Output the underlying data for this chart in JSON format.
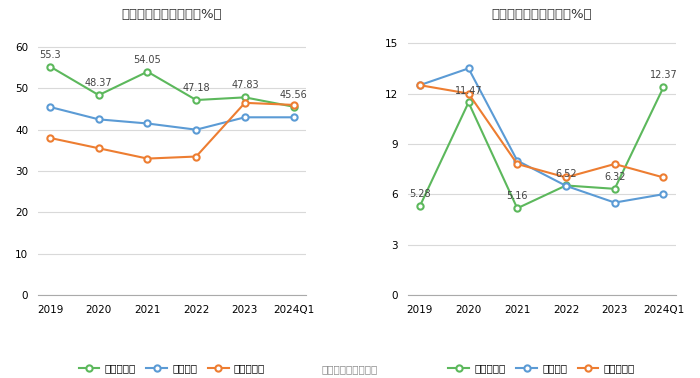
{
  "categories": [
    "2019",
    "2020",
    "2021",
    "2022",
    "2023",
    "2024Q1"
  ],
  "chart1": {
    "title": "历年毛利率变化情况（%）",
    "green": [
      55.3,
      48.37,
      54.05,
      47.18,
      47.83,
      45.56
    ],
    "blue": [
      45.5,
      42.5,
      41.5,
      40.0,
      43.0,
      43.0
    ],
    "orange": [
      38.0,
      35.5,
      33.0,
      33.5,
      46.5,
      46.0
    ],
    "green_label": "公司毛利率",
    "blue_label": "行业均值",
    "orange_label": "行业中位数",
    "ylim": [
      0,
      65
    ],
    "yticks": [
      0,
      10,
      20,
      30,
      40,
      50,
      60
    ]
  },
  "chart2": {
    "title": "历年净利率变化情况（%）",
    "green": [
      5.28,
      11.47,
      5.16,
      6.52,
      6.32,
      12.37
    ],
    "blue": [
      12.5,
      13.5,
      8.0,
      6.5,
      5.5,
      6.0
    ],
    "orange": [
      12.5,
      12.0,
      7.8,
      7.0,
      7.8,
      7.0
    ],
    "green_label": "公司净利率",
    "blue_label": "行业均值",
    "orange_label": "行业中位数",
    "ylim": [
      0,
      16
    ],
    "yticks": [
      0,
      3,
      6,
      9,
      12,
      15
    ]
  },
  "footer": "数据来源：恒生聚源",
  "green_color": "#5cb85c",
  "blue_color": "#5b9bd5",
  "orange_color": "#ed7d31",
  "bg_color": "#ffffff",
  "grid_color": "#d9d9d9"
}
